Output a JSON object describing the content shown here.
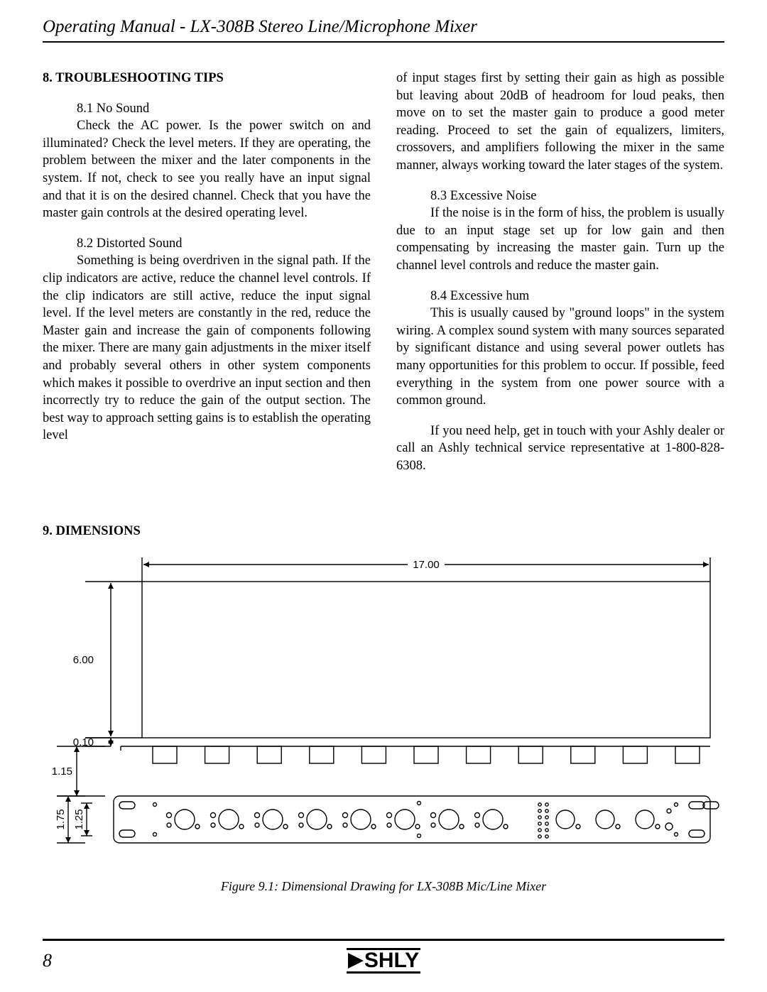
{
  "header": {
    "title": "Operating Manual - LX-308B Stereo Line/Microphone Mixer"
  },
  "section8": {
    "heading": "8. TROUBLESHOOTING TIPS",
    "s81_title": "8.1  No Sound",
    "s81_body": "Check the AC power.  Is the power switch on and illuminated?  Check the level meters.  If they are operating, the problem between the mixer and the later components in the system.  If not, check to see you really have an input signal and that it is on the desired channel.  Check that you have the master gain controls at the desired operating level.",
    "s82_title": "8.2 Distorted Sound",
    "s82_body_a": "Something is being overdriven in the signal path.  If the clip indicators are active, reduce the channel level controls.  If the clip indicators are still active, reduce the input signal level.  If the level meters are constantly in the red, reduce the Master gain and increase the gain of components following the mixer.  There are many gain adjustments in the mixer itself and probably several others in other system components which makes it possible to overdrive an input section and then incorrectly try to reduce the gain of the output section.  The best way to approach setting gains is to establish the operating level",
    "s82_body_b": "of input stages first by setting their gain as high as possible but leaving about 20dB of headroom for loud peaks, then move on to set the master gain to produce a good meter reading.  Proceed to set the gain of equalizers, limiters, crossovers, and amplifiers following the mixer in the same manner, always working toward the later stages of the system.",
    "s83_title": "8.3 Excessive Noise",
    "s83_body": "If the noise is in the form of hiss, the problem is usually due to an input stage set up for low gain and then compensating by increasing the master gain.  Turn up the channel level controls and reduce the master gain.",
    "s84_title": "8.4 Excessive hum",
    "s84_body": "This is usually caused by \"ground loops\" in the system wiring.  A complex sound system with many sources separated by significant distance and using several power outlets has many opportunities for this problem to occur.  If possible, feed everything in the system from one power source with a common ground.",
    "help": "If you need help, get in touch with your Ashly dealer or call an Ashly technical service representative at 1-800-828-6308."
  },
  "section9": {
    "heading": "9. DIMENSIONS",
    "caption": "Figure 9.1:  Dimensional Drawing for LX-308B Mic/Line Mixer"
  },
  "diagram": {
    "width_label": "17.00",
    "height_label": "6.00",
    "gap1_label": "0.10",
    "gap2_label": "1.15",
    "h3_label": "1.75",
    "h4_label": "1.25",
    "svg": {
      "viewbox_w": 960,
      "viewbox_h": 440,
      "stroke": "#000000",
      "stroke_w": 1.4,
      "font_family": "Arial, Helvetica, sans-serif",
      "font_size": 15
    }
  },
  "footer": {
    "page_number": "8",
    "logo_text": "SHLY"
  }
}
